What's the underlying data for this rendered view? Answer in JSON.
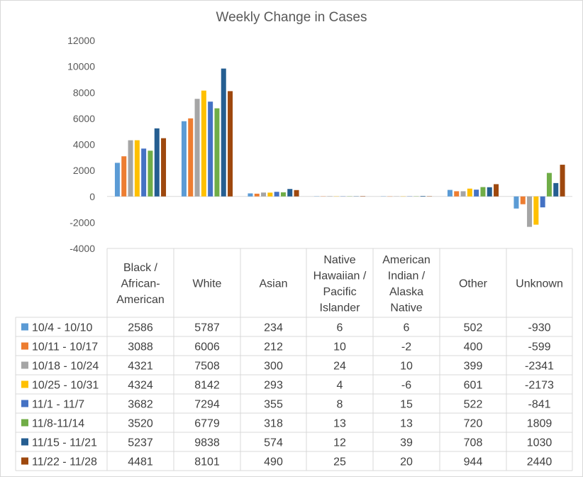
{
  "chart_data": {
    "type": "bar",
    "title": "Weekly Change in Cases",
    "xlabel": "",
    "ylabel": "",
    "ylim": [
      -4000,
      12000
    ],
    "yticks": [
      "12000",
      "10000",
      "8000",
      "6000",
      "4000",
      "2000",
      "0",
      "-2000",
      "-4000"
    ],
    "ytick_values": [
      12000,
      10000,
      8000,
      6000,
      4000,
      2000,
      0,
      -2000,
      -4000
    ],
    "grid": false,
    "legend": "data-table",
    "categories": [
      [
        "Black /",
        "African-",
        "American"
      ],
      [
        "White"
      ],
      [
        "Asian"
      ],
      [
        "Native",
        "Hawaiian /",
        "Pacific",
        "Islander"
      ],
      [
        "American",
        "Indian /",
        "Alaska",
        "Native"
      ],
      [
        "Other"
      ],
      [
        "Unknown"
      ]
    ],
    "series": [
      {
        "name": "10/4 - 10/10",
        "color": "#5B9BD5",
        "values": [
          2586,
          5787,
          234,
          6,
          6,
          502,
          -930
        ]
      },
      {
        "name": "10/11 - 10/17",
        "color": "#ED7D31",
        "values": [
          3088,
          6006,
          212,
          10,
          -2,
          400,
          -599
        ]
      },
      {
        "name": "10/18 - 10/24",
        "color": "#A5A5A5",
        "values": [
          4321,
          7508,
          300,
          24,
          10,
          399,
          -2341
        ]
      },
      {
        "name": "10/25 - 10/31",
        "color": "#FFC000",
        "values": [
          4324,
          8142,
          293,
          4,
          -6,
          601,
          -2173
        ]
      },
      {
        "name": "11/1 - 11/7",
        "color": "#4472C4",
        "values": [
          3682,
          7294,
          355,
          8,
          15,
          522,
          -841
        ]
      },
      {
        "name": "11/8-11/14",
        "color": "#70AD47",
        "values": [
          3520,
          6779,
          318,
          13,
          13,
          720,
          1809
        ]
      },
      {
        "name": "11/15 - 11/21",
        "color": "#255E91",
        "values": [
          5237,
          9838,
          574,
          12,
          39,
          708,
          1030
        ]
      },
      {
        "name": "11/22 - 11/28",
        "color": "#9E480E",
        "values": [
          4481,
          8101,
          490,
          25,
          20,
          944,
          2440
        ]
      }
    ]
  }
}
